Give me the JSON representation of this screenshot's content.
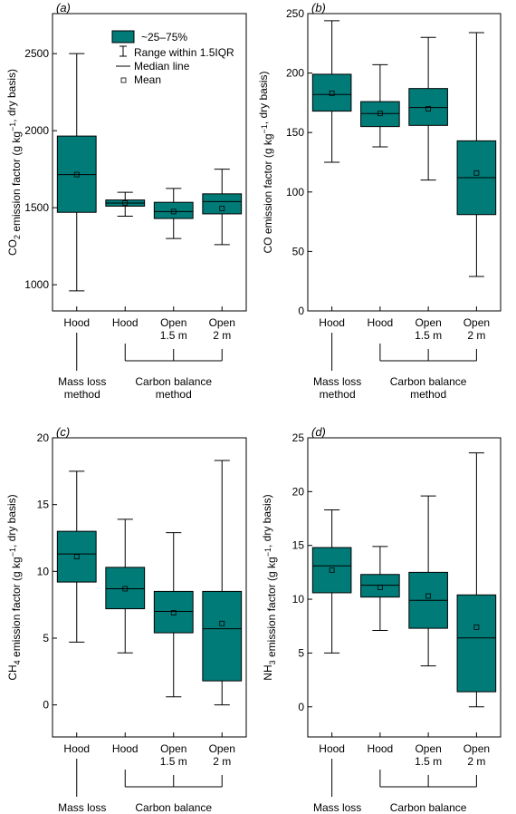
{
  "colors": {
    "box": "#007b78",
    "line": "#000000"
  },
  "legend": {
    "box_label": "~25–75%",
    "range_label": "Range within 1.5IQR",
    "median_label": "Median line",
    "mean_label": "Mean"
  },
  "categories": [
    {
      "line1": "Hood",
      "line2": ""
    },
    {
      "line1": "Hood",
      "line2": ""
    },
    {
      "line1": "Open",
      "line2": "1.5 m"
    },
    {
      "line1": "Open",
      "line2": "2 m"
    }
  ],
  "groups": {
    "mass_loss": {
      "line1": "Mass loss",
      "line2": "method"
    },
    "carbon_balance": {
      "line1": "Carbon balance",
      "line2": "method"
    }
  },
  "chart_data": [
    {
      "type": "box",
      "panel_label": "(a)",
      "ylabel_main": "CO",
      "ylabel_sub": "2",
      "ylabel_rest": " emission factor (g kg",
      "ylabel_sup": "−1",
      "ylabel_end": ", dry basis)",
      "ylim": [
        830,
        2760
      ],
      "yticks": [
        1000,
        1500,
        2000,
        2500
      ],
      "show_legend": true,
      "boxes": [
        {
          "whisker_low": 960,
          "q1": 1470,
          "median": 1715,
          "q3": 1965,
          "whisker_high": 2500,
          "mean": 1715
        },
        {
          "whisker_low": 1445,
          "q1": 1510,
          "median": 1530,
          "q3": 1550,
          "whisker_high": 1600,
          "mean": 1530
        },
        {
          "whisker_low": 1300,
          "q1": 1430,
          "median": 1475,
          "q3": 1535,
          "whisker_high": 1625,
          "mean": 1475
        },
        {
          "whisker_low": 1260,
          "q1": 1460,
          "median": 1540,
          "q3": 1590,
          "whisker_high": 1750,
          "mean": 1495
        }
      ]
    },
    {
      "type": "box",
      "panel_label": "(b)",
      "ylabel_main": "CO emission factor (g kg",
      "ylabel_sub": "",
      "ylabel_rest": "",
      "ylabel_sup": "−1",
      "ylabel_end": ", dry basis)",
      "ylim": [
        0,
        250
      ],
      "yticks": [
        0,
        50,
        100,
        150,
        200,
        250
      ],
      "show_legend": false,
      "boxes": [
        {
          "whisker_low": 125,
          "q1": 168,
          "median": 182,
          "q3": 199,
          "whisker_high": 244,
          "mean": 183
        },
        {
          "whisker_low": 138,
          "q1": 155,
          "median": 166,
          "q3": 176,
          "whisker_high": 207,
          "mean": 166
        },
        {
          "whisker_low": 110,
          "q1": 156,
          "median": 171,
          "q3": 187,
          "whisker_high": 230,
          "mean": 170
        },
        {
          "whisker_low": 29,
          "q1": 81,
          "median": 112,
          "q3": 143,
          "whisker_high": 234,
          "mean": 116
        }
      ]
    },
    {
      "type": "box",
      "panel_label": "(c)",
      "ylabel_main": "CH",
      "ylabel_sub": "4",
      "ylabel_rest": " emission factor (g kg",
      "ylabel_sup": "−1",
      "ylabel_end": ", dry basis)",
      "ylim": [
        -2.4,
        20
      ],
      "yticks": [
        0,
        5,
        10,
        15,
        20
      ],
      "show_legend": false,
      "boxes": [
        {
          "whisker_low": 4.7,
          "q1": 9.2,
          "median": 11.3,
          "q3": 13.0,
          "whisker_high": 17.5,
          "mean": 11.1
        },
        {
          "whisker_low": 3.9,
          "q1": 7.2,
          "median": 8.7,
          "q3": 10.3,
          "whisker_high": 13.9,
          "mean": 8.7
        },
        {
          "whisker_low": 0.6,
          "q1": 5.4,
          "median": 7.0,
          "q3": 8.5,
          "whisker_high": 12.9,
          "mean": 6.9
        },
        {
          "whisker_low": 0.0,
          "q1": 1.8,
          "median": 5.7,
          "q3": 8.5,
          "whisker_high": 18.3,
          "mean": 6.1
        }
      ]
    },
    {
      "type": "box",
      "panel_label": "(d)",
      "ylabel_main": "NH",
      "ylabel_sub": "3",
      "ylabel_rest": " emission factor (g kg",
      "ylabel_sup": "−1",
      "ylabel_end": ", dry basis)",
      "ylim": [
        -2.8,
        25
      ],
      "yticks": [
        0,
        5,
        10,
        15,
        20,
        25
      ],
      "show_legend": false,
      "boxes": [
        {
          "whisker_low": 5.0,
          "q1": 10.6,
          "median": 13.1,
          "q3": 14.8,
          "whisker_high": 18.3,
          "mean": 12.7
        },
        {
          "whisker_low": 7.1,
          "q1": 10.2,
          "median": 11.3,
          "q3": 12.3,
          "whisker_high": 14.9,
          "mean": 11.1
        },
        {
          "whisker_low": 3.8,
          "q1": 7.3,
          "median": 9.9,
          "q3": 12.5,
          "whisker_high": 19.6,
          "mean": 10.3
        },
        {
          "whisker_low": 0.0,
          "q1": 1.4,
          "median": 6.4,
          "q3": 10.4,
          "whisker_high": 23.6,
          "mean": 7.4
        }
      ]
    }
  ]
}
